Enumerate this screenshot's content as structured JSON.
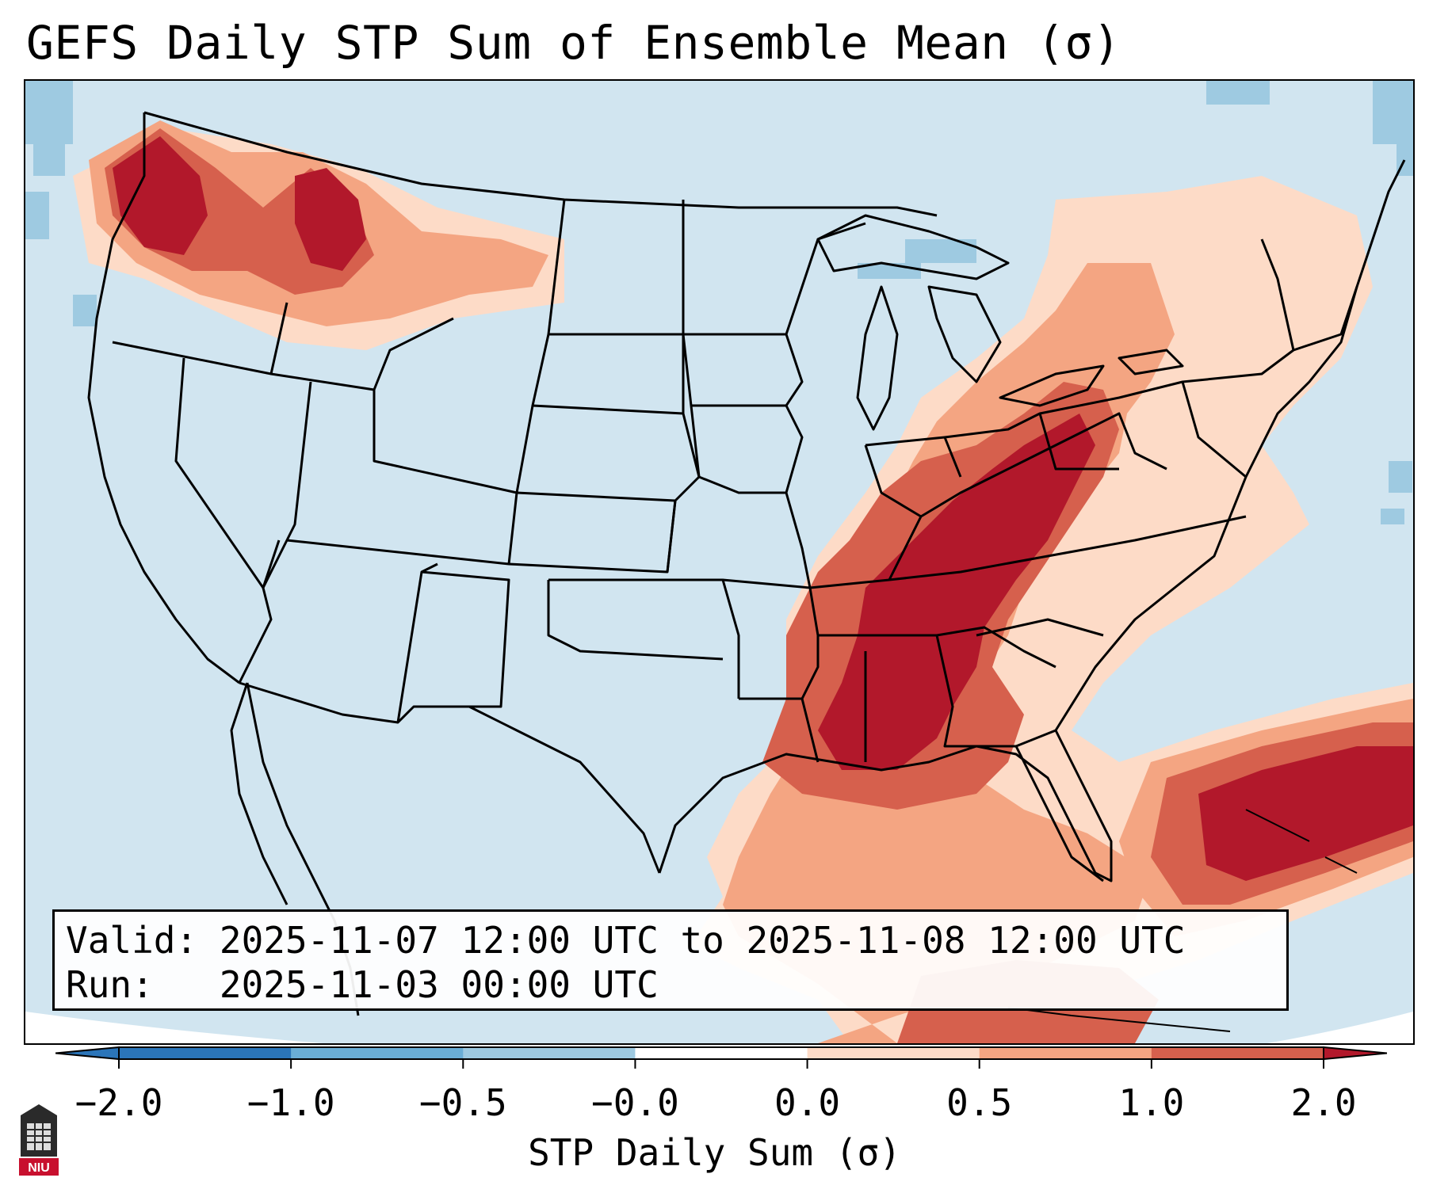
{
  "title": "GEFS Daily STP Sum of Ensemble Mean (σ)",
  "info": {
    "valid_label": "Valid:",
    "valid_value": "2025-11-07 12:00 UTC to 2025-11-08 12:00 UTC",
    "run_label": "Run:",
    "run_value": "2025-11-03 00:00 UTC"
  },
  "colorbar": {
    "label": "STP Daily Sum (σ)",
    "ticks": [
      "−2.0",
      "−1.0",
      "−0.5",
      "−0.0",
      "0.0",
      "0.5",
      "1.0",
      "2.0"
    ],
    "colors": [
      "#2b75b9",
      "#6aaed6",
      "#9ecae1",
      "#d1e5f0",
      "#fddbc7",
      "#f4a582",
      "#d6604d",
      "#b2182b"
    ]
  },
  "map": {
    "background_color": "#d1e5f0",
    "ocean_color": "#d1e5f0",
    "state_border_color": "#000000"
  },
  "logo": {
    "text": "NIU",
    "color": "#c8102e"
  }
}
